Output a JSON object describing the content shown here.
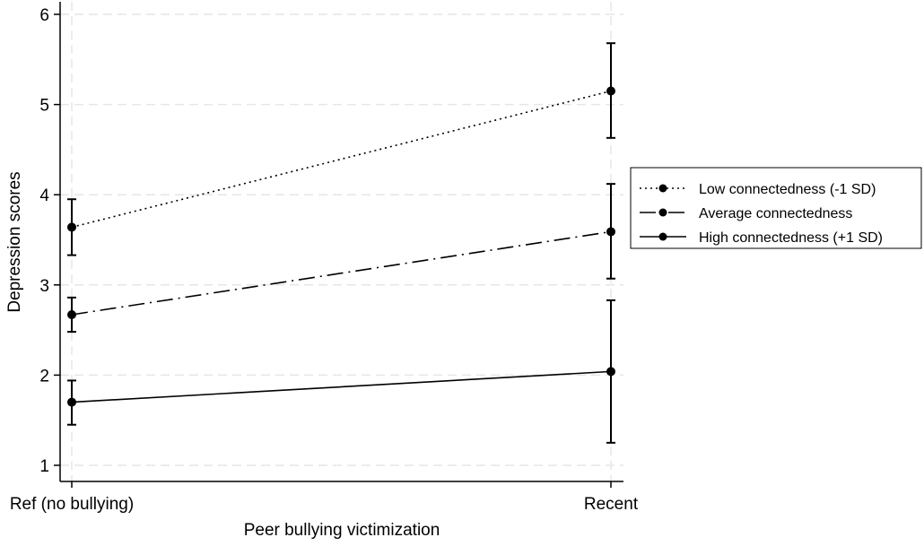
{
  "chart_data": {
    "type": "line",
    "title": "",
    "xlabel": "Peer bullying victimization",
    "ylabel": "Depression scores",
    "categories": [
      "Ref (no bullying)",
      "Recent"
    ],
    "ylim": [
      1,
      6
    ],
    "yticks": [
      1,
      2,
      3,
      4,
      5,
      6
    ],
    "grid": true,
    "legend_position": "right",
    "series": [
      {
        "name": "Low connectedness (-1 SD)",
        "style": "dotted",
        "values": [
          3.64,
          5.15
        ],
        "ci_low": [
          3.33,
          4.63
        ],
        "ci_high": [
          3.95,
          5.68
        ]
      },
      {
        "name": "Average connectedness",
        "style": "dash-dot",
        "values": [
          2.67,
          3.59
        ],
        "ci_low": [
          2.48,
          3.07
        ],
        "ci_high": [
          2.86,
          4.12
        ]
      },
      {
        "name": "High connectedness (+1 SD)",
        "style": "solid",
        "values": [
          1.7,
          2.04
        ],
        "ci_low": [
          1.45,
          1.25
        ],
        "ci_high": [
          1.94,
          2.83
        ]
      }
    ],
    "colors": {
      "line": "#000000",
      "grid": "#e6e6e6"
    }
  }
}
